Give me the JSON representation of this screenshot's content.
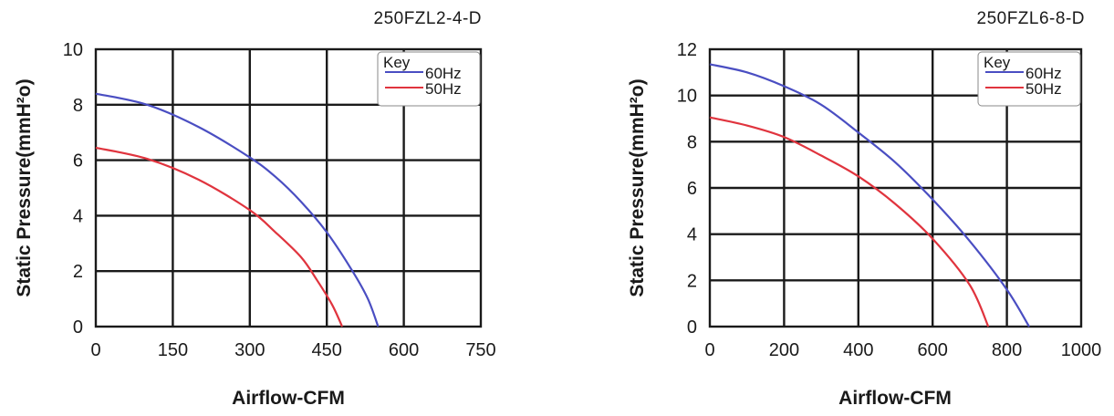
{
  "colors": {
    "60Hz": "#4a4ec2",
    "50Hz": "#e0343e",
    "grid": "#1a1a1a"
  },
  "chart_data": [
    {
      "type": "line",
      "title": "250FZL2-4-D",
      "xlabel": "Airflow-CFM",
      "ylabel": "Static Pressure(mmH²o)",
      "xlim": [
        0,
        750
      ],
      "ylim": [
        0,
        10
      ],
      "xticks": [
        "0",
        "150",
        "300",
        "450",
        "600",
        "750"
      ],
      "yticks": [
        "0",
        "2",
        "4",
        "6",
        "8",
        "10"
      ],
      "grid": true,
      "legend": {
        "title": "Key",
        "placement": "top-right"
      },
      "series": [
        {
          "name": "60Hz",
          "color": "#4a4ec2",
          "x": [
            0,
            100,
            200,
            300,
            350,
            400,
            450,
            500,
            530,
            550
          ],
          "y": [
            8.4,
            8.0,
            7.2,
            6.1,
            5.4,
            4.5,
            3.4,
            2.0,
            1.0,
            0
          ]
        },
        {
          "name": "50Hz",
          "color": "#e0343e",
          "x": [
            0,
            100,
            200,
            300,
            350,
            400,
            430,
            460,
            480
          ],
          "y": [
            6.45,
            6.05,
            5.3,
            4.2,
            3.4,
            2.5,
            1.7,
            0.8,
            0
          ]
        }
      ]
    },
    {
      "type": "line",
      "title": "250FZL6-8-D",
      "xlabel": "Airflow-CFM",
      "ylabel": "Static Pressure(mmH²o)",
      "xlim": [
        0,
        1000
      ],
      "ylim": [
        0,
        12
      ],
      "xticks": [
        "0",
        "200",
        "400",
        "600",
        "800",
        "1000"
      ],
      "yticks": [
        "0",
        "2",
        "4",
        "6",
        "8",
        "10",
        "12"
      ],
      "grid": true,
      "legend": {
        "title": "Key",
        "placement": "top-right"
      },
      "series": [
        {
          "name": "60Hz",
          "color": "#4a4ec2",
          "x": [
            0,
            100,
            200,
            300,
            400,
            500,
            600,
            700,
            800,
            860
          ],
          "y": [
            11.35,
            11.0,
            10.4,
            9.6,
            8.4,
            7.1,
            5.5,
            3.7,
            1.6,
            0
          ]
        },
        {
          "name": "50Hz",
          "color": "#e0343e",
          "x": [
            0,
            100,
            200,
            300,
            400,
            500,
            600,
            700,
            750
          ],
          "y": [
            9.05,
            8.7,
            8.2,
            7.4,
            6.5,
            5.3,
            3.8,
            1.8,
            0
          ]
        }
      ]
    }
  ]
}
